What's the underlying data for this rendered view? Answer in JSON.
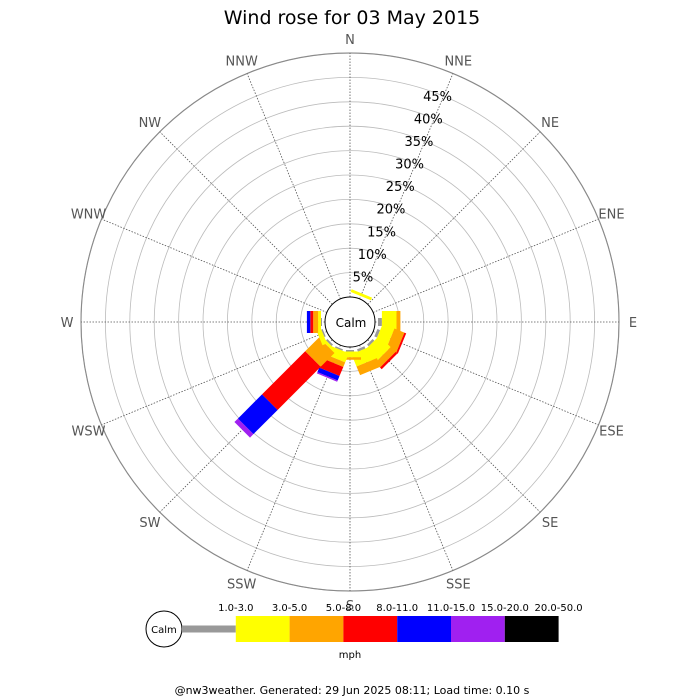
{
  "chart_data": {
    "type": "wind-rose",
    "title": "Wind rose for 03 May 2015",
    "calm_label": "Calm",
    "directions": [
      "N",
      "NNE",
      "NE",
      "ENE",
      "E",
      "ESE",
      "SE",
      "SSE",
      "S",
      "SSW",
      "SW",
      "WSW",
      "W",
      "WNW",
      "NW",
      "NNW"
    ],
    "ring_labels": [
      "5%",
      "10%",
      "15%",
      "20%",
      "25%",
      "30%",
      "35%",
      "40%",
      "45%"
    ],
    "radial_max_percent": 50,
    "speed_bins": [
      {
        "label": "1.0-3.0",
        "color": "#999999"
      },
      {
        "label": "3.0-5.0",
        "color": "#ffff00"
      },
      {
        "label": "5.0-8.0",
        "color": "#ffa500"
      },
      {
        "label": "8.0-11.0",
        "color": "#ff0000"
      },
      {
        "label": "11.0-15.0",
        "color": "#0000ff"
      },
      {
        "label": "15.0-20.0",
        "color": "#a020f0"
      },
      {
        "label": "20.0-50.0",
        "color": "#000000"
      }
    ],
    "unit": "mph",
    "series": [
      {
        "direction": "N",
        "values": [
          0,
          0,
          0,
          0,
          0,
          0,
          0
        ]
      },
      {
        "direction": "NNE",
        "values": [
          0,
          0.6,
          0,
          0,
          0,
          0,
          0
        ]
      },
      {
        "direction": "NE",
        "values": [
          0,
          0,
          0,
          0,
          0,
          0,
          0
        ]
      },
      {
        "direction": "ENE",
        "values": [
          0,
          0,
          0,
          0,
          0,
          0,
          0
        ]
      },
      {
        "direction": "E",
        "values": [
          0.8,
          3.0,
          0.8,
          0,
          0,
          0,
          0
        ]
      },
      {
        "direction": "ESE",
        "values": [
          0.6,
          2.6,
          2.2,
          0.4,
          0,
          0,
          0
        ]
      },
      {
        "direction": "SE",
        "values": [
          0.5,
          3.3,
          1.4,
          0.5,
          0,
          0,
          0
        ]
      },
      {
        "direction": "SSE",
        "values": [
          0.5,
          2.7,
          1.9,
          0,
          0,
          0,
          0
        ]
      },
      {
        "direction": "S",
        "values": [
          0.3,
          1.2,
          0.5,
          0,
          0,
          0,
          0
        ]
      },
      {
        "direction": "SSW",
        "values": [
          0.3,
          2.0,
          1.0,
          2.0,
          1.0,
          0.3,
          0
        ]
      },
      {
        "direction": "SW",
        "values": [
          0.4,
          0.6,
          4.0,
          12.5,
          7.0,
          1.0,
          0
        ]
      },
      {
        "direction": "WSW",
        "values": [
          0.3,
          1.0,
          0,
          0,
          0,
          0,
          0
        ]
      },
      {
        "direction": "W",
        "values": [
          0.2,
          0.6,
          1.0,
          0.6,
          0.7,
          0,
          0
        ]
      },
      {
        "direction": "WNW",
        "values": [
          0,
          0,
          0,
          0,
          0,
          0,
          0
        ]
      },
      {
        "direction": "NW",
        "values": [
          0,
          0,
          0,
          0,
          0,
          0,
          0
        ]
      },
      {
        "direction": "NNW",
        "values": [
          0,
          0,
          0,
          0,
          0,
          0,
          0
        ]
      }
    ],
    "footer": "@nw3weather. Generated: 29 Jun 2025 08:11; Load time: 0.10 s"
  }
}
